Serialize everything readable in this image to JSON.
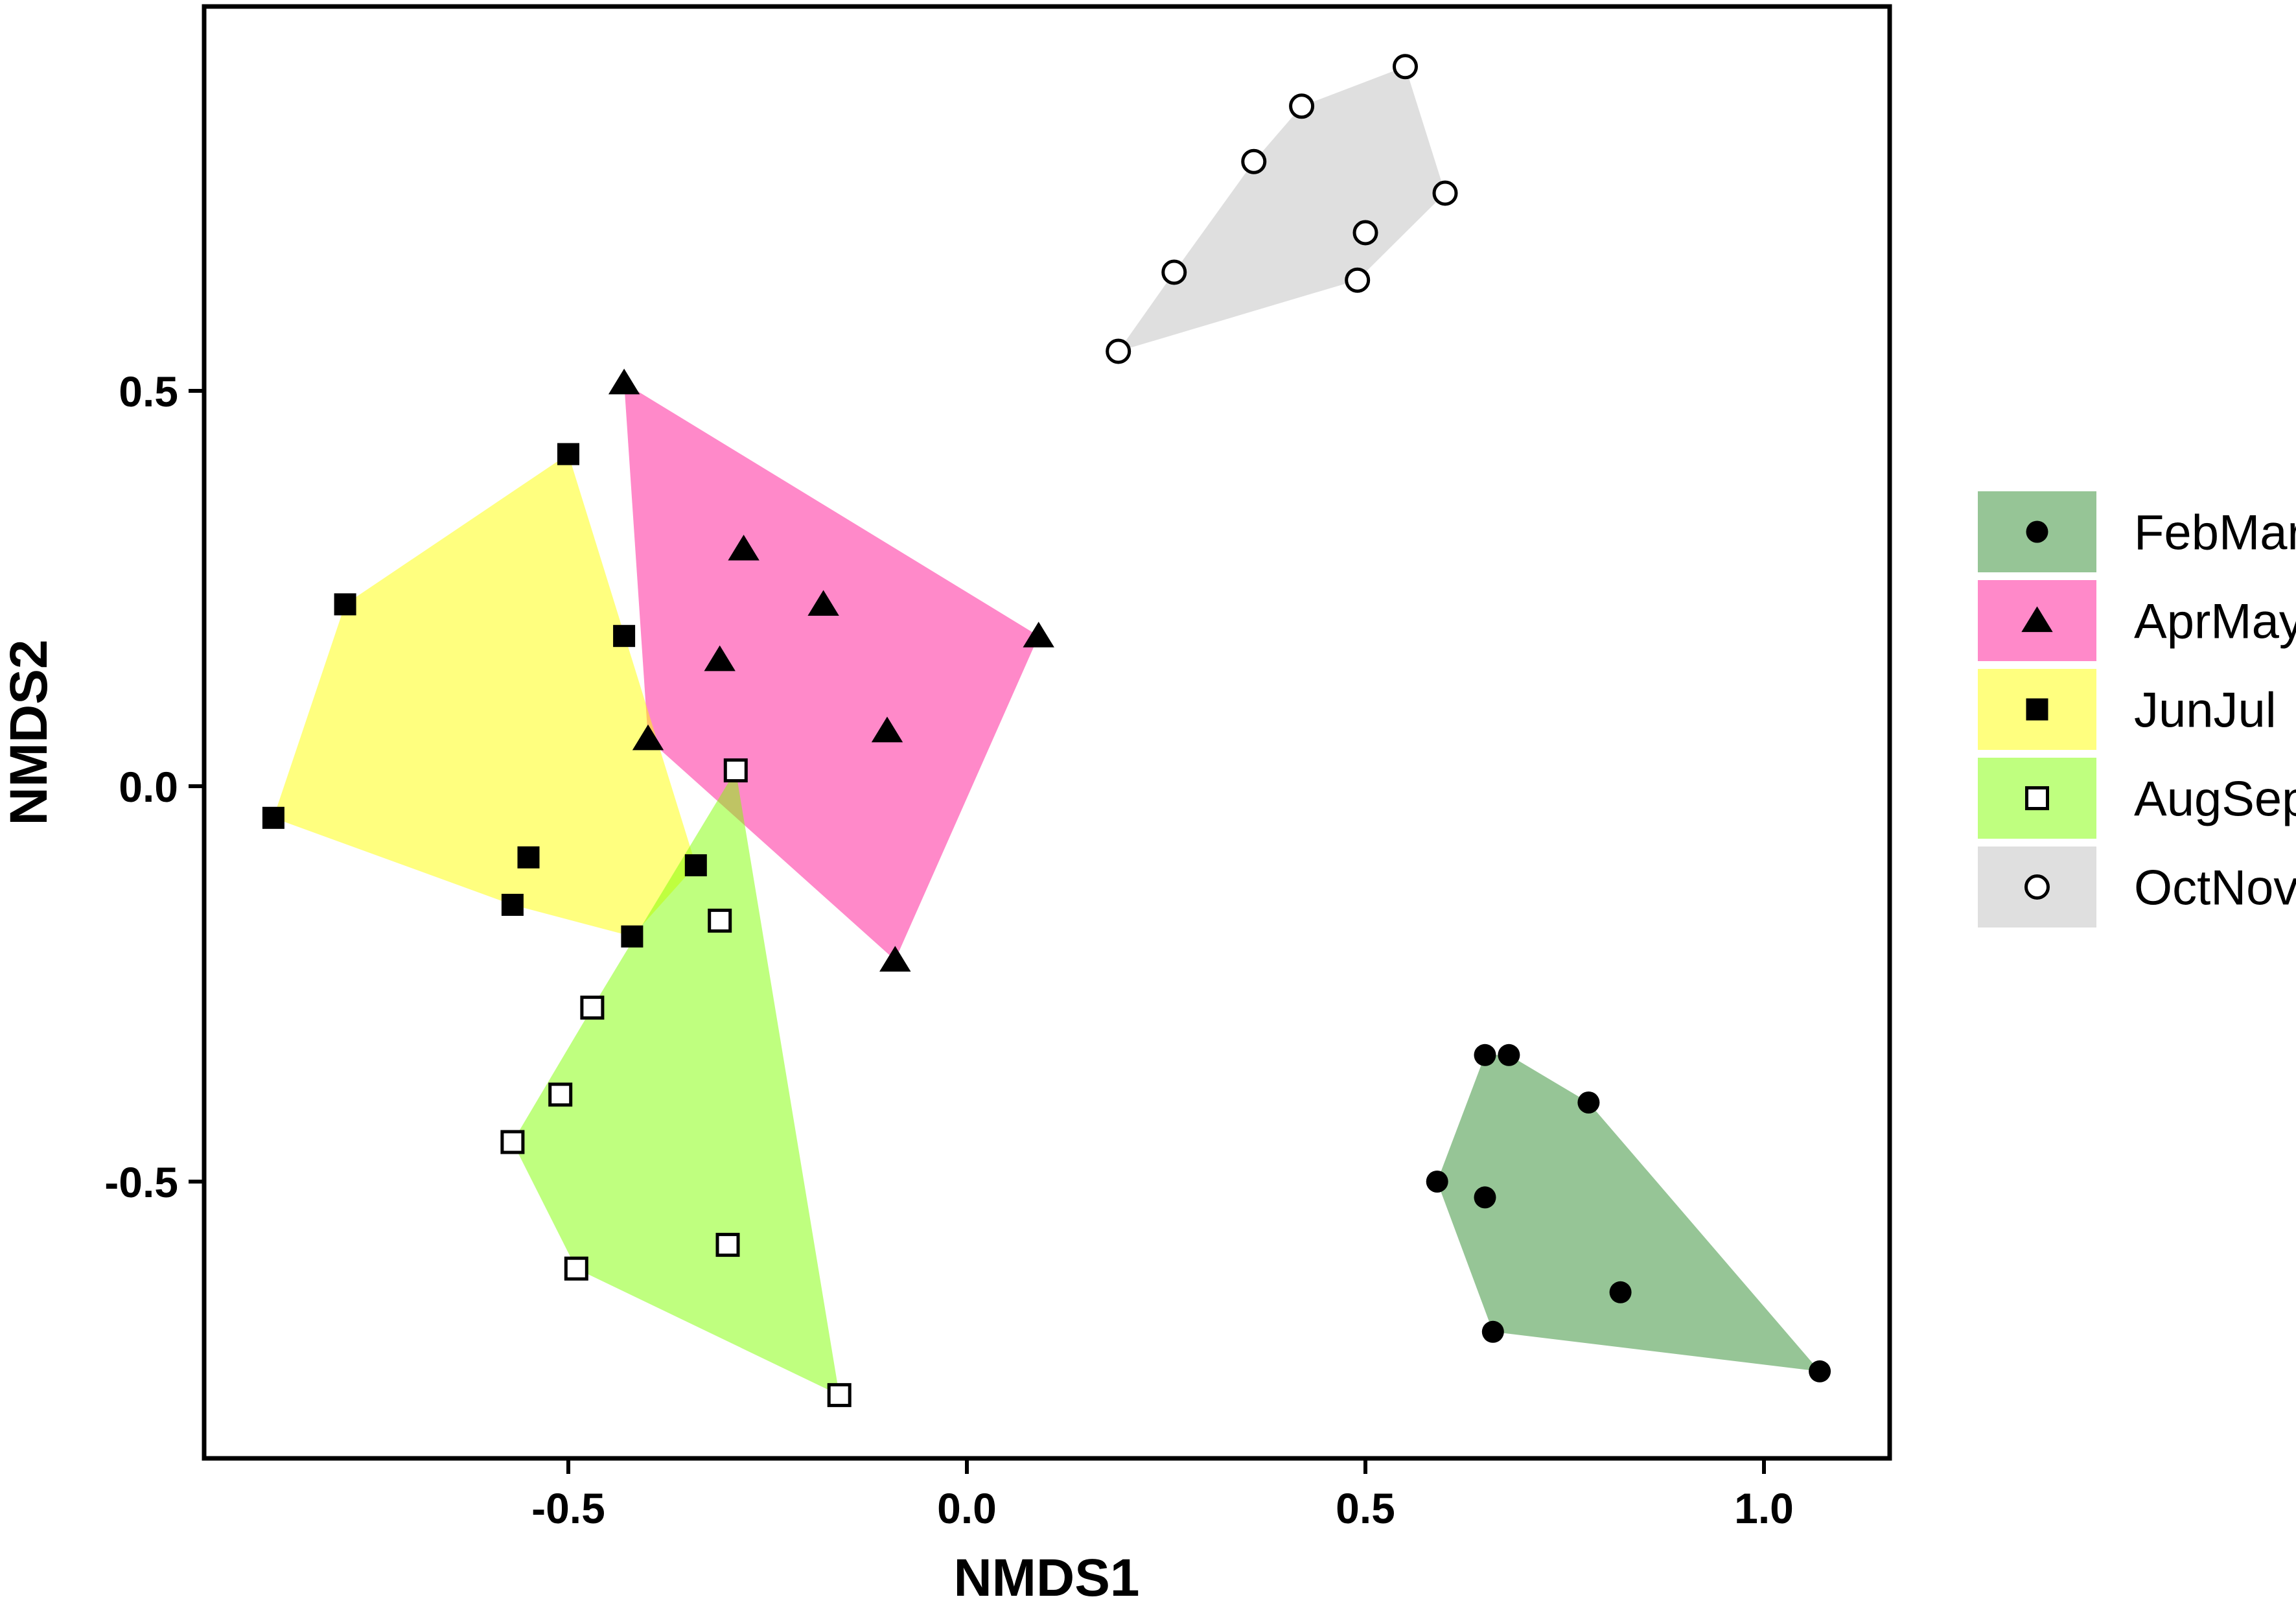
{
  "chart_data": {
    "type": "scatter",
    "xlabel": "NMDS1",
    "ylabel": "NMDS2",
    "xlim": [
      -0.96,
      1.15
    ],
    "ylim": [
      -0.85,
      0.98
    ],
    "xticks": [
      -0.5,
      0.0,
      0.5,
      1.0
    ],
    "xtick_labels": [
      "-0.5",
      "0.0",
      "0.5",
      "1.0"
    ],
    "yticks": [
      -0.5,
      0.0,
      0.5
    ],
    "ytick_labels": [
      "-0.5",
      "0.0",
      "0.5"
    ],
    "grid": false,
    "legend_position": "right",
    "hulls": "convex hull polygon per group, semi-transparent fill",
    "series": [
      {
        "name": "FebMar",
        "marker": "filled-circle",
        "hull_color": "#2e8b2e",
        "points": [
          [
            0.65,
            -0.34
          ],
          [
            0.68,
            -0.34
          ],
          [
            0.78,
            -0.4
          ],
          [
            0.59,
            -0.5
          ],
          [
            0.65,
            -0.52
          ],
          [
            0.82,
            -0.64
          ],
          [
            0.66,
            -0.69
          ],
          [
            1.07,
            -0.74
          ]
        ]
      },
      {
        "name": "AprMay",
        "marker": "filled-triangle",
        "hull_color": "#ff1493",
        "points": [
          [
            -0.43,
            0.51
          ],
          [
            -0.28,
            0.3
          ],
          [
            -0.18,
            0.23
          ],
          [
            0.09,
            0.19
          ],
          [
            -0.31,
            0.16
          ],
          [
            -0.1,
            0.07
          ],
          [
            -0.4,
            0.06
          ],
          [
            -0.09,
            -0.22
          ]
        ]
      },
      {
        "name": "JunJul",
        "marker": "filled-square",
        "hull_color": "#ffff00",
        "points": [
          [
            -0.5,
            0.42
          ],
          [
            -0.78,
            0.23
          ],
          [
            -0.43,
            0.19
          ],
          [
            -0.87,
            -0.04
          ],
          [
            -0.55,
            -0.09
          ],
          [
            -0.34,
            -0.1
          ],
          [
            -0.57,
            -0.15
          ],
          [
            -0.42,
            -0.19
          ]
        ]
      },
      {
        "name": "AugSep",
        "marker": "open-square",
        "hull_color": "#80ff00",
        "points": [
          [
            -0.29,
            0.02
          ],
          [
            -0.31,
            -0.17
          ],
          [
            -0.47,
            -0.28
          ],
          [
            -0.51,
            -0.39
          ],
          [
            -0.57,
            -0.45
          ],
          [
            -0.3,
            -0.58
          ],
          [
            -0.49,
            -0.61
          ],
          [
            -0.16,
            -0.77
          ]
        ]
      },
      {
        "name": "OctNov",
        "marker": "open-circle",
        "hull_color": "#c0c0c0",
        "points": [
          [
            0.55,
            0.91
          ],
          [
            0.42,
            0.86
          ],
          [
            0.36,
            0.79
          ],
          [
            0.6,
            0.75
          ],
          [
            0.5,
            0.7
          ],
          [
            0.26,
            0.65
          ],
          [
            0.49,
            0.64
          ],
          [
            0.19,
            0.55
          ]
        ]
      }
    ]
  }
}
